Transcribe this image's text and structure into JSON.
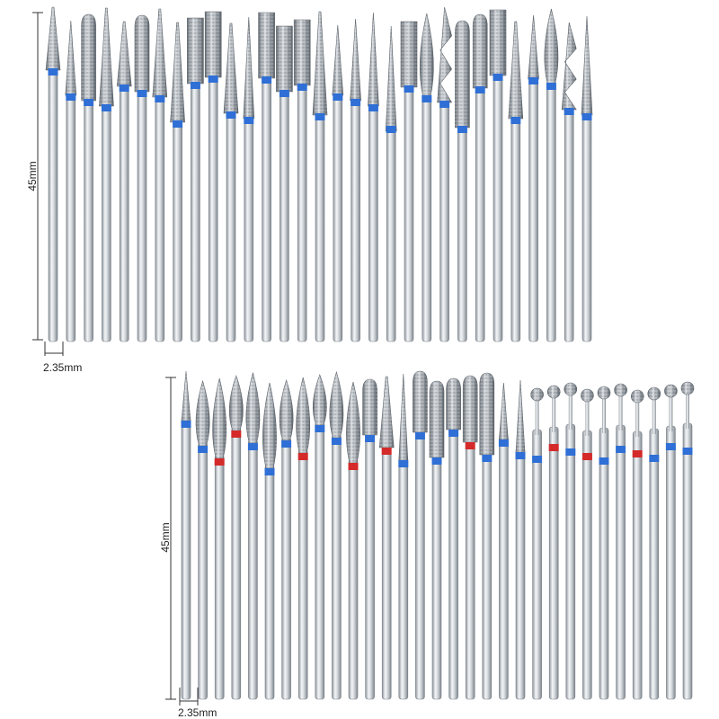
{
  "colors": {
    "band_blue": "#2f6fd6",
    "band_red": "#d42a2a",
    "shank": "#c9ced3",
    "grit": "#9aa1a8",
    "dimension_line": "#333333"
  },
  "set_top": {
    "length_label": "45mm",
    "diameter_label": "2.35mm",
    "band_color": "blue",
    "count": 31
  },
  "set_bottom": {
    "length_label": "45mm",
    "diameter_label": "2.35mm",
    "band_colors": [
      "blue",
      "red"
    ],
    "count": 31
  }
}
